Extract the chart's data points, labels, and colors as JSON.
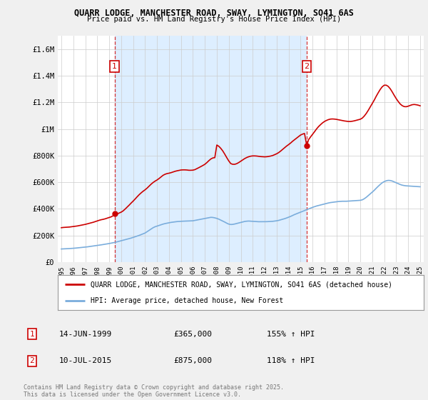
{
  "title1": "QUARR LODGE, MANCHESTER ROAD, SWAY, LYMINGTON, SO41 6AS",
  "title2": "Price paid vs. HM Land Registry's House Price Index (HPI)",
  "legend_line1": "QUARR LODGE, MANCHESTER ROAD, SWAY, LYMINGTON, SO41 6AS (detached house)",
  "legend_line2": "HPI: Average price, detached house, New Forest",
  "ann1_num": "1",
  "ann1_date": "14-JUN-1999",
  "ann1_price": "£365,000",
  "ann1_hpi": "155% ↑ HPI",
  "ann1_x": 1999.45,
  "ann1_y": 365000,
  "ann2_num": "2",
  "ann2_date": "10-JUL-2015",
  "ann2_price": "£875,000",
  "ann2_hpi": "118% ↑ HPI",
  "ann2_x": 2015.52,
  "ann2_y": 875000,
  "footer": "Contains HM Land Registry data © Crown copyright and database right 2025.\nThis data is licensed under the Open Government Licence v3.0.",
  "hpi_color": "#7aaddc",
  "price_color": "#cc0000",
  "shade_color": "#ddeeff",
  "background_color": "#f0f0f0",
  "plot_bg_color": "#ffffff",
  "grid_color": "#cccccc",
  "ylim": [
    0,
    1700000
  ],
  "xlim": [
    1994.7,
    2025.3
  ],
  "yticks": [
    0,
    200000,
    400000,
    600000,
    800000,
    1000000,
    1200000,
    1400000,
    1600000
  ],
  "ytick_labels": [
    "£0",
    "£200K",
    "£400K",
    "£600K",
    "£800K",
    "£1M",
    "£1.2M",
    "£1.4M",
    "£1.6M"
  ],
  "hpi_data": [
    [
      1995.0,
      98000
    ],
    [
      1995.17,
      99000
    ],
    [
      1995.33,
      99500
    ],
    [
      1995.5,
      100000
    ],
    [
      1995.67,
      101000
    ],
    [
      1995.83,
      102000
    ],
    [
      1996.0,
      103000
    ],
    [
      1996.17,
      104500
    ],
    [
      1996.33,
      106000
    ],
    [
      1996.5,
      107500
    ],
    [
      1996.67,
      109000
    ],
    [
      1996.83,
      110500
    ],
    [
      1997.0,
      112000
    ],
    [
      1997.17,
      114000
    ],
    [
      1997.33,
      116000
    ],
    [
      1997.5,
      118000
    ],
    [
      1997.67,
      120000
    ],
    [
      1997.83,
      122000
    ],
    [
      1998.0,
      124000
    ],
    [
      1998.17,
      126500
    ],
    [
      1998.33,
      129000
    ],
    [
      1998.5,
      131500
    ],
    [
      1998.67,
      134000
    ],
    [
      1998.83,
      136500
    ],
    [
      1999.0,
      139000
    ],
    [
      1999.17,
      142000
    ],
    [
      1999.33,
      145000
    ],
    [
      1999.5,
      148000
    ],
    [
      1999.67,
      152000
    ],
    [
      1999.83,
      156000
    ],
    [
      2000.0,
      160000
    ],
    [
      2000.17,
      164000
    ],
    [
      2000.33,
      168000
    ],
    [
      2000.5,
      172000
    ],
    [
      2000.67,
      176000
    ],
    [
      2000.83,
      180000
    ],
    [
      2001.0,
      185000
    ],
    [
      2001.17,
      190000
    ],
    [
      2001.33,
      195000
    ],
    [
      2001.5,
      200000
    ],
    [
      2001.67,
      206000
    ],
    [
      2001.83,
      212000
    ],
    [
      2002.0,
      218000
    ],
    [
      2002.17,
      228000
    ],
    [
      2002.33,
      238000
    ],
    [
      2002.5,
      248000
    ],
    [
      2002.67,
      258000
    ],
    [
      2002.83,
      265000
    ],
    [
      2003.0,
      270000
    ],
    [
      2003.17,
      275000
    ],
    [
      2003.33,
      280000
    ],
    [
      2003.5,
      285000
    ],
    [
      2003.67,
      289000
    ],
    [
      2003.83,
      292000
    ],
    [
      2004.0,
      295000
    ],
    [
      2004.17,
      298000
    ],
    [
      2004.33,
      300000
    ],
    [
      2004.5,
      302000
    ],
    [
      2004.67,
      304000
    ],
    [
      2004.83,
      305000
    ],
    [
      2005.0,
      306000
    ],
    [
      2005.17,
      307000
    ],
    [
      2005.33,
      307500
    ],
    [
      2005.5,
      308000
    ],
    [
      2005.67,
      308500
    ],
    [
      2005.83,
      309000
    ],
    [
      2006.0,
      310000
    ],
    [
      2006.17,
      313000
    ],
    [
      2006.33,
      316000
    ],
    [
      2006.5,
      319000
    ],
    [
      2006.67,
      322000
    ],
    [
      2006.83,
      325000
    ],
    [
      2007.0,
      328000
    ],
    [
      2007.17,
      331000
    ],
    [
      2007.33,
      334000
    ],
    [
      2007.5,
      336000
    ],
    [
      2007.67,
      335000
    ],
    [
      2007.83,
      332000
    ],
    [
      2008.0,
      328000
    ],
    [
      2008.17,
      322000
    ],
    [
      2008.33,
      315000
    ],
    [
      2008.5,
      308000
    ],
    [
      2008.67,
      300000
    ],
    [
      2008.83,
      292000
    ],
    [
      2009.0,
      285000
    ],
    [
      2009.17,
      282000
    ],
    [
      2009.33,
      283000
    ],
    [
      2009.5,
      286000
    ],
    [
      2009.67,
      290000
    ],
    [
      2009.83,
      294000
    ],
    [
      2010.0,
      298000
    ],
    [
      2010.17,
      302000
    ],
    [
      2010.33,
      305000
    ],
    [
      2010.5,
      307000
    ],
    [
      2010.67,
      308000
    ],
    [
      2010.83,
      307000
    ],
    [
      2011.0,
      306000
    ],
    [
      2011.17,
      305000
    ],
    [
      2011.33,
      304000
    ],
    [
      2011.5,
      303000
    ],
    [
      2011.67,
      303000
    ],
    [
      2011.83,
      303000
    ],
    [
      2012.0,
      303000
    ],
    [
      2012.17,
      303500
    ],
    [
      2012.33,
      304000
    ],
    [
      2012.5,
      305000
    ],
    [
      2012.67,
      306000
    ],
    [
      2012.83,
      308000
    ],
    [
      2013.0,
      310000
    ],
    [
      2013.17,
      313000
    ],
    [
      2013.33,
      317000
    ],
    [
      2013.5,
      321000
    ],
    [
      2013.67,
      326000
    ],
    [
      2013.83,
      331000
    ],
    [
      2014.0,
      337000
    ],
    [
      2014.17,
      343000
    ],
    [
      2014.33,
      350000
    ],
    [
      2014.5,
      357000
    ],
    [
      2014.67,
      363000
    ],
    [
      2014.83,
      369000
    ],
    [
      2015.0,
      375000
    ],
    [
      2015.17,
      381000
    ],
    [
      2015.33,
      387000
    ],
    [
      2015.5,
      393000
    ],
    [
      2015.67,
      399000
    ],
    [
      2015.83,
      405000
    ],
    [
      2016.0,
      411000
    ],
    [
      2016.17,
      416000
    ],
    [
      2016.33,
      421000
    ],
    [
      2016.5,
      425000
    ],
    [
      2016.67,
      429000
    ],
    [
      2016.83,
      433000
    ],
    [
      2017.0,
      437000
    ],
    [
      2017.17,
      441000
    ],
    [
      2017.33,
      444000
    ],
    [
      2017.5,
      447000
    ],
    [
      2017.67,
      449000
    ],
    [
      2017.83,
      451000
    ],
    [
      2018.0,
      453000
    ],
    [
      2018.17,
      455000
    ],
    [
      2018.33,
      456000
    ],
    [
      2018.5,
      457000
    ],
    [
      2018.67,
      457000
    ],
    [
      2018.83,
      457000
    ],
    [
      2019.0,
      458000
    ],
    [
      2019.17,
      459000
    ],
    [
      2019.33,
      460000
    ],
    [
      2019.5,
      461000
    ],
    [
      2019.67,
      462000
    ],
    [
      2019.83,
      463000
    ],
    [
      2020.0,
      464000
    ],
    [
      2020.17,
      468000
    ],
    [
      2020.33,
      476000
    ],
    [
      2020.5,
      487000
    ],
    [
      2020.67,
      500000
    ],
    [
      2020.83,
      513000
    ],
    [
      2021.0,
      526000
    ],
    [
      2021.17,
      540000
    ],
    [
      2021.33,
      555000
    ],
    [
      2021.5,
      570000
    ],
    [
      2021.67,
      584000
    ],
    [
      2021.83,
      596000
    ],
    [
      2022.0,
      605000
    ],
    [
      2022.17,
      611000
    ],
    [
      2022.33,
      614000
    ],
    [
      2022.5,
      613000
    ],
    [
      2022.67,
      609000
    ],
    [
      2022.83,
      603000
    ],
    [
      2023.0,
      596000
    ],
    [
      2023.17,
      589000
    ],
    [
      2023.33,
      583000
    ],
    [
      2023.5,
      578000
    ],
    [
      2023.67,
      575000
    ],
    [
      2023.83,
      573000
    ],
    [
      2024.0,
      572000
    ],
    [
      2024.17,
      571000
    ],
    [
      2024.33,
      570000
    ],
    [
      2024.5,
      569000
    ],
    [
      2024.67,
      568000
    ],
    [
      2024.83,
      567000
    ],
    [
      2025.0,
      566000
    ]
  ],
  "price_data": [
    [
      1995.0,
      258000
    ],
    [
      1995.17,
      260000
    ],
    [
      1995.33,
      261000
    ],
    [
      1995.5,
      262000
    ],
    [
      1995.67,
      263000
    ],
    [
      1995.83,
      265000
    ],
    [
      1996.0,
      267000
    ],
    [
      1996.17,
      269000
    ],
    [
      1996.33,
      271000
    ],
    [
      1996.5,
      274000
    ],
    [
      1996.67,
      277000
    ],
    [
      1996.83,
      280000
    ],
    [
      1997.0,
      283000
    ],
    [
      1997.17,
      287000
    ],
    [
      1997.33,
      291000
    ],
    [
      1997.5,
      295000
    ],
    [
      1997.67,
      299000
    ],
    [
      1997.83,
      304000
    ],
    [
      1998.0,
      309000
    ],
    [
      1998.17,
      314000
    ],
    [
      1998.33,
      318000
    ],
    [
      1998.5,
      321000
    ],
    [
      1998.67,
      325000
    ],
    [
      1998.83,
      330000
    ],
    [
      1999.0,
      335000
    ],
    [
      1999.17,
      340000
    ],
    [
      1999.33,
      348000
    ],
    [
      1999.45,
      365000
    ],
    [
      1999.5,
      358000
    ],
    [
      1999.67,
      362000
    ],
    [
      1999.83,
      368000
    ],
    [
      2000.0,
      375000
    ],
    [
      2000.17,
      385000
    ],
    [
      2000.33,
      398000
    ],
    [
      2000.5,
      413000
    ],
    [
      2000.67,
      428000
    ],
    [
      2000.83,
      443000
    ],
    [
      2001.0,
      458000
    ],
    [
      2001.17,
      474000
    ],
    [
      2001.33,
      490000
    ],
    [
      2001.5,
      506000
    ],
    [
      2001.67,
      520000
    ],
    [
      2001.83,
      532000
    ],
    [
      2002.0,
      543000
    ],
    [
      2002.17,
      556000
    ],
    [
      2002.33,
      570000
    ],
    [
      2002.5,
      585000
    ],
    [
      2002.67,
      598000
    ],
    [
      2002.83,
      608000
    ],
    [
      2003.0,
      617000
    ],
    [
      2003.17,
      628000
    ],
    [
      2003.33,
      640000
    ],
    [
      2003.5,
      652000
    ],
    [
      2003.67,
      660000
    ],
    [
      2003.83,
      665000
    ],
    [
      2004.0,
      668000
    ],
    [
      2004.17,
      672000
    ],
    [
      2004.33,
      677000
    ],
    [
      2004.5,
      682000
    ],
    [
      2004.67,
      686000
    ],
    [
      2004.83,
      689000
    ],
    [
      2005.0,
      692000
    ],
    [
      2005.17,
      693000
    ],
    [
      2005.33,
      693000
    ],
    [
      2005.5,
      692000
    ],
    [
      2005.67,
      690000
    ],
    [
      2005.83,
      690000
    ],
    [
      2006.0,
      691000
    ],
    [
      2006.17,
      695000
    ],
    [
      2006.33,
      702000
    ],
    [
      2006.5,
      710000
    ],
    [
      2006.67,
      718000
    ],
    [
      2006.83,
      726000
    ],
    [
      2007.0,
      735000
    ],
    [
      2007.17,
      748000
    ],
    [
      2007.33,
      762000
    ],
    [
      2007.5,
      775000
    ],
    [
      2007.67,
      783000
    ],
    [
      2007.83,
      785000
    ],
    [
      2008.0,
      880000
    ],
    [
      2008.17,
      870000
    ],
    [
      2008.33,
      855000
    ],
    [
      2008.5,
      835000
    ],
    [
      2008.67,
      810000
    ],
    [
      2008.83,
      785000
    ],
    [
      2009.0,
      760000
    ],
    [
      2009.17,
      740000
    ],
    [
      2009.33,
      735000
    ],
    [
      2009.5,
      735000
    ],
    [
      2009.67,
      740000
    ],
    [
      2009.83,
      748000
    ],
    [
      2010.0,
      758000
    ],
    [
      2010.17,
      768000
    ],
    [
      2010.33,
      778000
    ],
    [
      2010.5,
      786000
    ],
    [
      2010.67,
      792000
    ],
    [
      2010.83,
      796000
    ],
    [
      2011.0,
      798000
    ],
    [
      2011.17,
      798000
    ],
    [
      2011.33,
      797000
    ],
    [
      2011.5,
      795000
    ],
    [
      2011.67,
      793000
    ],
    [
      2011.83,
      792000
    ],
    [
      2012.0,
      791000
    ],
    [
      2012.17,
      792000
    ],
    [
      2012.33,
      794000
    ],
    [
      2012.5,
      797000
    ],
    [
      2012.67,
      801000
    ],
    [
      2012.83,
      807000
    ],
    [
      2013.0,
      814000
    ],
    [
      2013.17,
      823000
    ],
    [
      2013.33,
      834000
    ],
    [
      2013.5,
      847000
    ],
    [
      2013.67,
      860000
    ],
    [
      2013.83,
      872000
    ],
    [
      2014.0,
      883000
    ],
    [
      2014.17,
      895000
    ],
    [
      2014.33,
      908000
    ],
    [
      2014.5,
      920000
    ],
    [
      2014.67,
      932000
    ],
    [
      2014.83,
      944000
    ],
    [
      2015.0,
      955000
    ],
    [
      2015.17,
      962000
    ],
    [
      2015.33,
      967000
    ],
    [
      2015.52,
      875000
    ],
    [
      2015.67,
      920000
    ],
    [
      2015.83,
      940000
    ],
    [
      2016.0,
      960000
    ],
    [
      2016.17,
      980000
    ],
    [
      2016.33,
      1000000
    ],
    [
      2016.5,
      1018000
    ],
    [
      2016.67,
      1033000
    ],
    [
      2016.83,
      1046000
    ],
    [
      2017.0,
      1057000
    ],
    [
      2017.17,
      1065000
    ],
    [
      2017.33,
      1071000
    ],
    [
      2017.5,
      1075000
    ],
    [
      2017.67,
      1076000
    ],
    [
      2017.83,
      1075000
    ],
    [
      2018.0,
      1073000
    ],
    [
      2018.17,
      1070000
    ],
    [
      2018.33,
      1067000
    ],
    [
      2018.5,
      1064000
    ],
    [
      2018.67,
      1061000
    ],
    [
      2018.83,
      1059000
    ],
    [
      2019.0,
      1057000
    ],
    [
      2019.17,
      1057000
    ],
    [
      2019.33,
      1059000
    ],
    [
      2019.5,
      1062000
    ],
    [
      2019.67,
      1066000
    ],
    [
      2019.83,
      1070000
    ],
    [
      2020.0,
      1074000
    ],
    [
      2020.17,
      1083000
    ],
    [
      2020.33,
      1098000
    ],
    [
      2020.5,
      1118000
    ],
    [
      2020.67,
      1142000
    ],
    [
      2020.83,
      1167000
    ],
    [
      2021.0,
      1193000
    ],
    [
      2021.17,
      1219000
    ],
    [
      2021.33,
      1247000
    ],
    [
      2021.5,
      1274000
    ],
    [
      2021.67,
      1299000
    ],
    [
      2021.83,
      1318000
    ],
    [
      2022.0,
      1330000
    ],
    [
      2022.17,
      1330000
    ],
    [
      2022.33,
      1321000
    ],
    [
      2022.5,
      1303000
    ],
    [
      2022.67,
      1279000
    ],
    [
      2022.83,
      1254000
    ],
    [
      2023.0,
      1229000
    ],
    [
      2023.17,
      1207000
    ],
    [
      2023.33,
      1189000
    ],
    [
      2023.5,
      1176000
    ],
    [
      2023.67,
      1169000
    ],
    [
      2023.83,
      1168000
    ],
    [
      2024.0,
      1172000
    ],
    [
      2024.17,
      1178000
    ],
    [
      2024.33,
      1183000
    ],
    [
      2024.5,
      1185000
    ],
    [
      2024.67,
      1183000
    ],
    [
      2024.83,
      1180000
    ],
    [
      2025.0,
      1175000
    ]
  ]
}
